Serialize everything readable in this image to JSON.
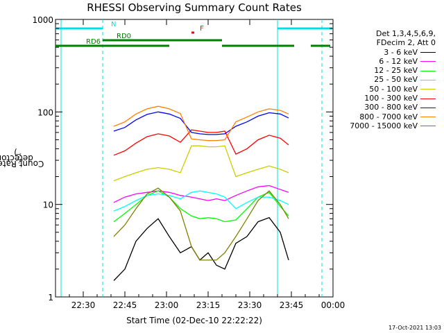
{
  "chart_data": {
    "type": "line",
    "title": "RHESSI Observing Summary Count Rates",
    "xlabel": "Start Time (02-Dec-10 22:22:22)",
    "ylabel": "Count Rate (s",
    "ylabel_sup1": "-1",
    "ylabel_mid": " detector",
    "ylabel_sup2": "-1",
    "ylabel_end": ")",
    "yscale": "log",
    "ylim": [
      1,
      1000
    ],
    "xlim_minutes_after_2220": [
      0,
      100
    ],
    "x_ticks": [
      "22:30",
      "22:45",
      "23:00",
      "23:15",
      "23:30",
      "23:45",
      "00:00"
    ],
    "y_ticks": [
      "1",
      "10",
      "100",
      "1000"
    ],
    "legend_header": [
      "Det 1,3,4,5,6,9,",
      "FDecim 2, Att 0"
    ],
    "flags": [
      {
        "label": "N",
        "color": "#00e0e0",
        "segments": [
          [
            0,
            17
          ],
          [
            80,
            100
          ]
        ]
      },
      {
        "label": "F",
        "color": "#ff0000",
        "segments": [
          [
            49,
            50
          ]
        ]
      },
      {
        "label": "RD0",
        "color": "#008000",
        "segments": [
          [
            17,
            41
          ],
          [
            41,
            60
          ]
        ]
      },
      {
        "label": "RD6",
        "color": "#008000",
        "segments": [
          [
            0,
            41
          ],
          [
            60,
            86
          ],
          [
            92,
            99
          ]
        ]
      }
    ],
    "series": [
      {
        "name": "3 - 6 keV",
        "color": "#000000",
        "values": [
          1.5,
          2.0,
          4.0,
          5.5,
          7.0,
          4.5,
          3.0,
          3.5,
          2.5,
          3.0,
          2.2,
          2.0,
          3.8,
          4.5,
          6.5,
          7.2,
          5.0,
          2.5
        ]
      },
      {
        "name": "6 - 12 keV",
        "color": "#ff00ff",
        "values": [
          10.5,
          12.0,
          13.0,
          13.5,
          14.0,
          13.5,
          12.5,
          12.0,
          11.5,
          11.0,
          11.5,
          11.0,
          12.5,
          14.0,
          15.5,
          16.0,
          14.5,
          13.5
        ]
      },
      {
        "name": "12 - 25 keV",
        "color": "#00ff00",
        "values": [
          6.5,
          8.0,
          10.0,
          12.5,
          14.0,
          12.0,
          9.0,
          7.5,
          7.0,
          7.2,
          7.0,
          6.5,
          6.8,
          9.0,
          12.0,
          13.5,
          9.5,
          7.5
        ]
      },
      {
        "name": "25 - 50 keV",
        "color": "#00ffff",
        "values": [
          8.5,
          9.5,
          11.0,
          12.5,
          13.0,
          12.5,
          11.5,
          13.5,
          14.0,
          13.5,
          13.0,
          12.0,
          9.0,
          10.5,
          12.0,
          12.0,
          11.0,
          10.0
        ]
      },
      {
        "name": "50 - 100 keV",
        "color": "#cccc00",
        "values": [
          18,
          20,
          22,
          24,
          25,
          24,
          22,
          43,
          43,
          42,
          42,
          43,
          20,
          22,
          24,
          26,
          24,
          22
        ]
      },
      {
        "name": "100 - 300 keV",
        "color": "#ff0000",
        "values": [
          34,
          38,
          46,
          54,
          58,
          55,
          47,
          64,
          62,
          60,
          60,
          62,
          35,
          40,
          50,
          56,
          52,
          44
        ]
      },
      {
        "name": "300 - 800 keV",
        "color": "#0000ff",
        "values": [
          62,
          68,
          82,
          94,
          100,
          95,
          85,
          60,
          58,
          57,
          57,
          58,
          70,
          78,
          90,
          98,
          95,
          86
        ]
      },
      {
        "name": "800 - 7000 keV",
        "color": "#ff8000",
        "values": [
          70,
          78,
          95,
          108,
          115,
          108,
          96,
          51,
          50,
          49,
          49,
          50,
          78,
          88,
          100,
          108,
          104,
          95
        ]
      },
      {
        "name": "7000 - 15000 keV",
        "color": "#808000",
        "values": [
          4.5,
          6.0,
          9.0,
          13.0,
          15.0,
          12.0,
          8.5,
          3.5,
          2.5,
          2.5,
          2.5,
          3.0,
          4.5,
          7.0,
          11.0,
          14.0,
          10.0,
          7.0
        ]
      }
    ],
    "series_x_minutes_after_2220": [
      21,
      25,
      29,
      33,
      37,
      41,
      45,
      49,
      52,
      55,
      58,
      61,
      65,
      69,
      73,
      77,
      81,
      84
    ],
    "footer": "17-Oct-2021 13:03"
  }
}
